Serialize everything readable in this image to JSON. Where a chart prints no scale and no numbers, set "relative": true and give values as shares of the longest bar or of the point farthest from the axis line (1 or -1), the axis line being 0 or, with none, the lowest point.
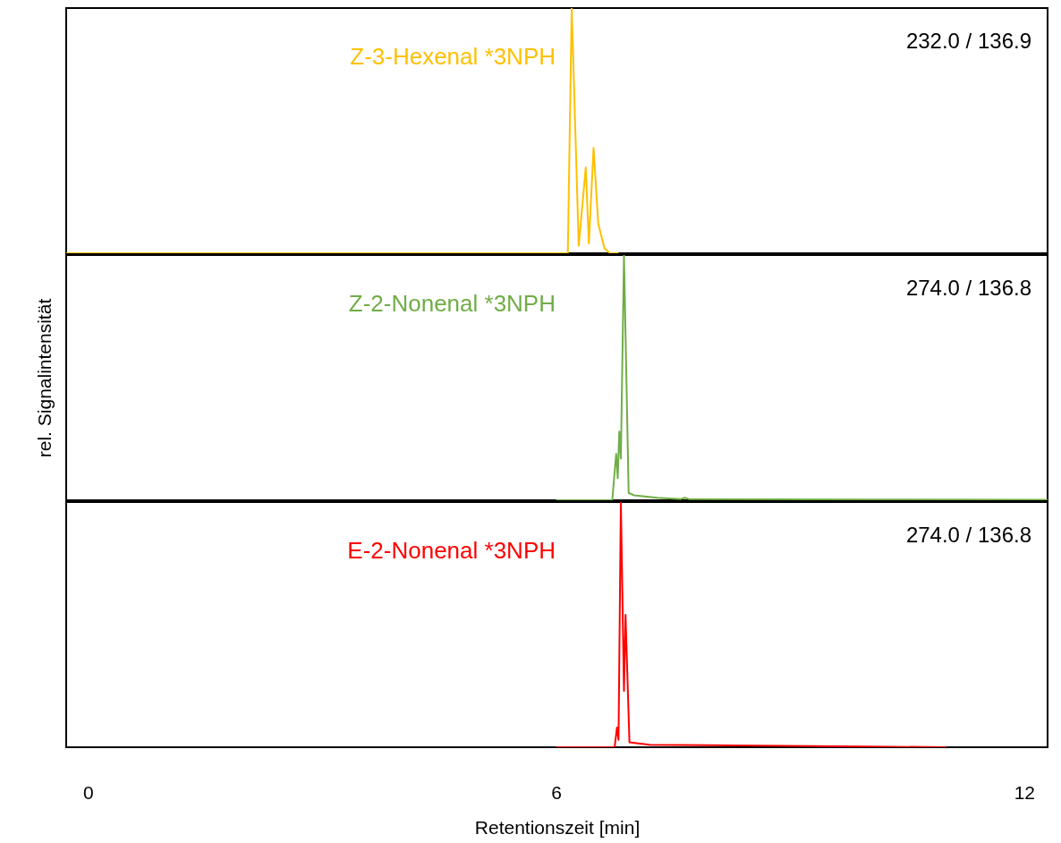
{
  "chart_data": [
    {
      "type": "line",
      "relative": true,
      "xlim": [
        -0.28,
        12.3
      ],
      "tick_labels": false,
      "grid": false,
      "marker": "none",
      "line_style": "solid",
      "annotations": [
        "232.0 / 136.9"
      ],
      "series": [
        {
          "name": "Z-3-Hexenal *3NPH",
          "color": "#ffc000",
          "x": [
            -0.28,
            6.0,
            6.15,
            6.2,
            6.29,
            6.38,
            6.42,
            6.48,
            6.54,
            6.58,
            6.62,
            6.69,
            6.8
          ],
          "values": [
            0,
            0,
            0,
            1,
            0.03,
            0.35,
            0.04,
            0.43,
            0.12,
            0.07,
            0.02,
            0,
            0
          ]
        }
      ]
    },
    {
      "type": "line",
      "relative": true,
      "xlim": [
        -0.28,
        12.3
      ],
      "tick_labels": false,
      "grid": false,
      "marker": "none",
      "line_style": "solid",
      "ylabel": "rel. Signalintensität",
      "annotations": [
        "274.0 / 136.8"
      ],
      "series": [
        {
          "name": "Z-2-Nonenal *3NPH",
          "color": "#70ad47",
          "x": [
            6.0,
            6.72,
            6.77,
            6.79,
            6.81,
            6.83,
            6.87,
            6.93,
            7.0,
            7.3,
            7.6,
            7.65,
            7.7,
            10.0,
            12.3
          ],
          "values": [
            0,
            0,
            0.19,
            0.09,
            0.28,
            0.17,
            1,
            0.03,
            0.02,
            0.01,
            0.005,
            0.01,
            0.005,
            0.003,
            0.002
          ]
        }
      ]
    },
    {
      "type": "line",
      "relative": true,
      "xlim": [
        -0.28,
        12.3
      ],
      "xticks": [
        0,
        6,
        12
      ],
      "tick_labels": "x",
      "grid": false,
      "marker": "none",
      "line_style": "solid",
      "xlabel": "Retentionszeit [min]",
      "annotations": [
        "274.0 / 136.8"
      ],
      "series": [
        {
          "name": "E-2-Nonenal *3NPH",
          "color": "#ff0000",
          "x": [
            6.0,
            6.75,
            6.78,
            6.8,
            6.83,
            6.87,
            6.89,
            6.94,
            7.2,
            10.0,
            11.0
          ],
          "values": [
            0,
            0,
            0.08,
            0.03,
            1,
            0.23,
            0.54,
            0.02,
            0.01,
            0.003,
            0
          ]
        }
      ]
    }
  ]
}
